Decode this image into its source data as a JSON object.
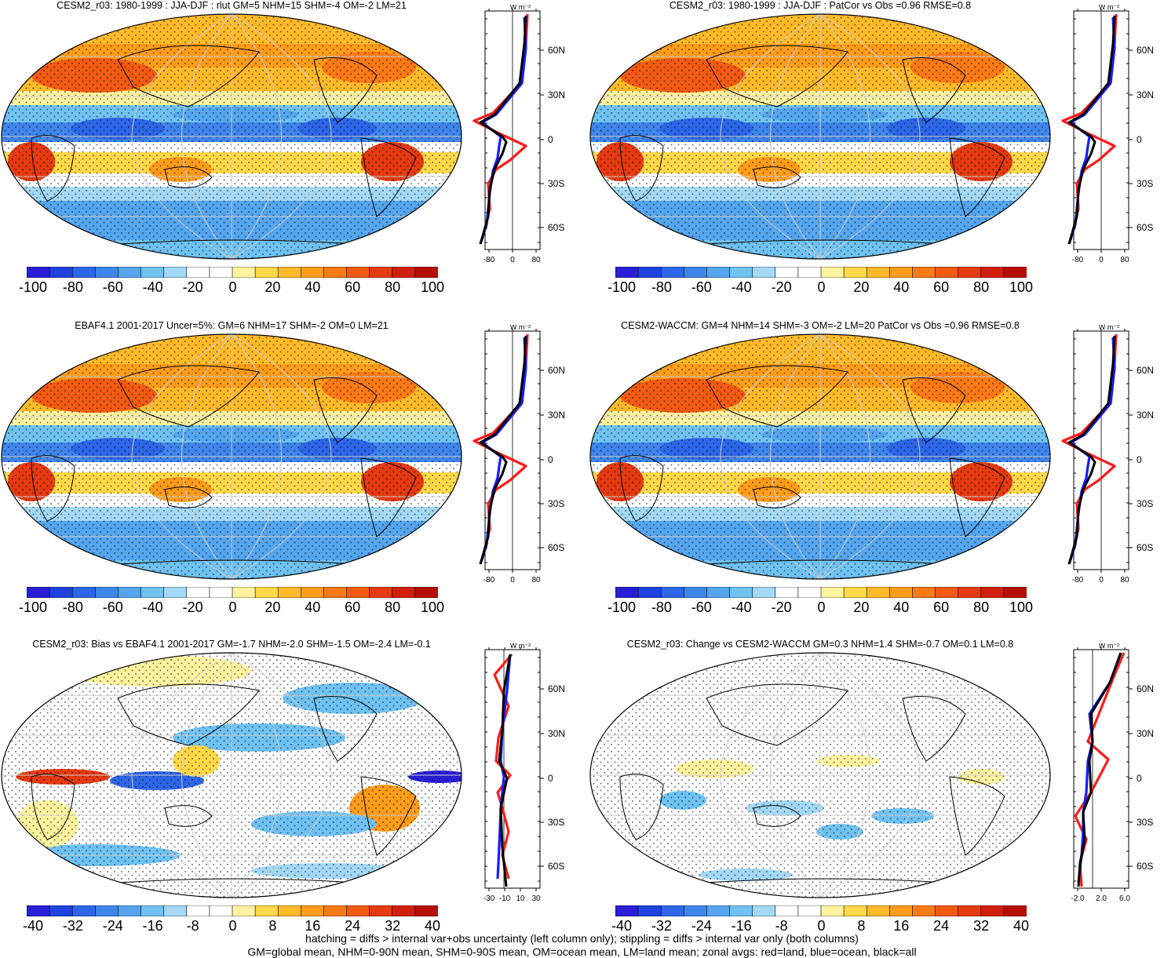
{
  "panels": [
    {
      "id": "p1",
      "title": "CESM2_r03: 1980-1999 : JJA-DJF : rlut GM=5 NHM=15 SHM=-4 OM=-2 LM=21",
      "colorbar_labels": [
        "-100",
        "-80",
        "-60",
        "-40",
        "-20",
        "0",
        "20",
        "40",
        "60",
        "80",
        "100"
      ],
      "profile_unit": "W m⁻²",
      "profile_xticks": [
        "-80",
        "0",
        "80"
      ],
      "profile_yticks": [
        "60N",
        "30N",
        "0",
        "30S",
        "60S"
      ]
    },
    {
      "id": "p2",
      "title": "CESM2_r03: 1980-1999 : JJA-DJF : PatCor vs Obs =0.96 RMSE=0.8",
      "colorbar_labels": [
        "-100",
        "-80",
        "-60",
        "-40",
        "-20",
        "0",
        "20",
        "40",
        "60",
        "80",
        "100"
      ],
      "profile_unit": "W m⁻²",
      "profile_xticks": [
        "-80",
        "0",
        "80"
      ],
      "profile_yticks": [
        "60N",
        "30N",
        "0",
        "30S",
        "60S"
      ]
    },
    {
      "id": "p3",
      "title": "EBAF4.1 2001-2017 Uncer=5%: GM=6 NHM=17 SHM=-2 OM=0 LM=21",
      "colorbar_labels": [
        "-100",
        "-80",
        "-60",
        "-40",
        "-20",
        "0",
        "20",
        "40",
        "60",
        "80",
        "100"
      ],
      "profile_unit": "W m⁻²",
      "profile_xticks": [
        "-80",
        "0",
        "80"
      ],
      "profile_yticks": [
        "60N",
        "30N",
        "0",
        "30S",
        "60S"
      ]
    },
    {
      "id": "p4",
      "title": "CESM2-WACCM: GM=4 NHM=14 SHM=-3 OM=-2 LM=20 PatCor vs Obs =0.96 RMSE=0.8",
      "colorbar_labels": [
        "-100",
        "-80",
        "-60",
        "-40",
        "-20",
        "0",
        "20",
        "40",
        "60",
        "80",
        "100"
      ],
      "profile_unit": "W m⁻²",
      "profile_xticks": [
        "-80",
        "0",
        "80"
      ],
      "profile_yticks": [
        "60N",
        "30N",
        "0",
        "30S",
        "60S"
      ]
    },
    {
      "id": "p5",
      "title": "CESM2_r03: Bias vs EBAF4.1 2001-2017 GM=-1.7 NHM=-2.0 SHM=-1.5 OM=-2.4 LM=-0.1",
      "colorbar_labels": [
        "-40",
        "-32",
        "-24",
        "-16",
        "-8",
        "0",
        "8",
        "16",
        "24",
        "32",
        "40"
      ],
      "profile_unit": "W m⁻²",
      "profile_xticks": [
        "-30",
        "-10",
        "10",
        "30"
      ],
      "profile_yticks": [
        "60N",
        "30N",
        "0",
        "30S",
        "60S"
      ]
    },
    {
      "id": "p6",
      "title": "CESM2_r03: Change vs CESM2-WACCM GM=0.3 NHM=1.4 SHM=-0.7 OM=0.1 LM=0.8",
      "colorbar_labels": [
        "-40",
        "-32",
        "-24",
        "-16",
        "-8",
        "0",
        "8",
        "16",
        "24",
        "32",
        "40"
      ],
      "profile_unit": "W m⁻²",
      "profile_xticks": [
        "-2.0",
        "2.0",
        "6.0"
      ],
      "profile_yticks": [
        "60N",
        "30N",
        "0",
        "30S",
        "60S"
      ]
    }
  ],
  "footer": {
    "line1": "hatching = diffs > internal var+obs uncertainty (left column only); stippling = diffs > internal var only (both columns)",
    "line2": "GM=global mean, NHM=0-90N mean, SHM=0-90S mean, OM=ocean mean, LM=land mean; zonal avgs: red=land, blue=ocean, black=all"
  },
  "colors": {
    "colorbar": [
      "#2a1fd6",
      "#1f43e0",
      "#2d66e8",
      "#3f86ec",
      "#55a6ef",
      "#6fc2f2",
      "#a3d9f6",
      "#ffffff",
      "#ffffff",
      "#fff3a0",
      "#ffd84a",
      "#ffba2a",
      "#ff9c1a",
      "#fb7a15",
      "#f25a12",
      "#e63a10",
      "#d21e0c",
      "#b80e08"
    ],
    "land_line": "#ff1a1a",
    "ocean_line": "#1a1aff",
    "all_line": "#000000"
  }
}
